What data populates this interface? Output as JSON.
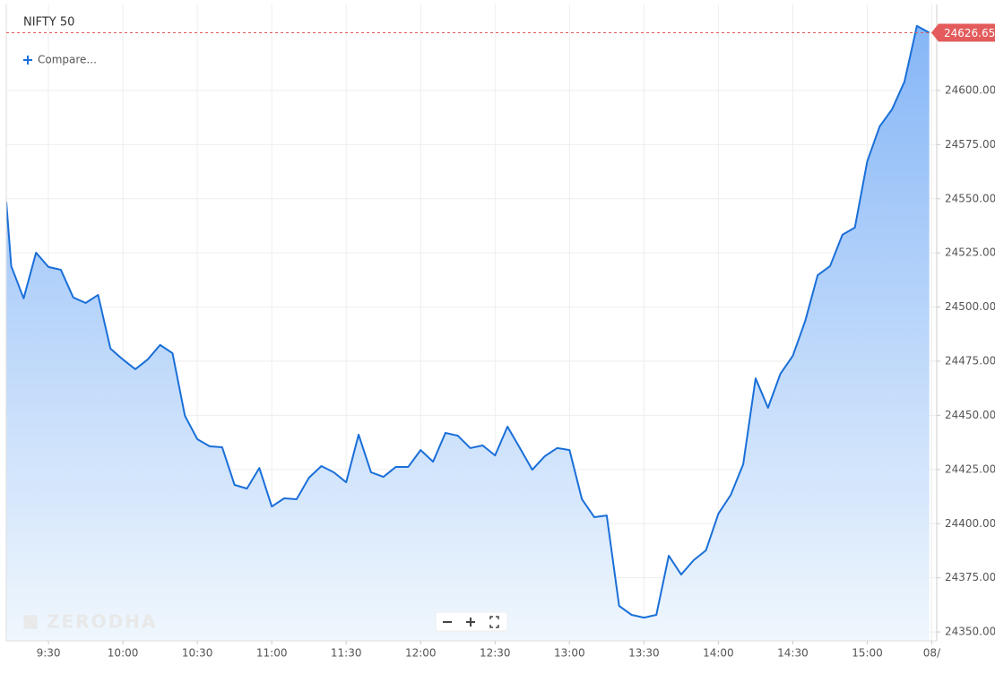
{
  "chart_data": {
    "type": "line",
    "title": "NIFTY 50",
    "compare_button": "Compare...",
    "watermark": "ZERODHA",
    "x": [
      553,
      555,
      560,
      565,
      570,
      575,
      580,
      585,
      590,
      595,
      600,
      605,
      610,
      615,
      620,
      625,
      630,
      635,
      640,
      645,
      650,
      655,
      660,
      665,
      670,
      675,
      680,
      685,
      690,
      695,
      700,
      705,
      710,
      715,
      720,
      725,
      730,
      735,
      740,
      745,
      750,
      755,
      760,
      765,
      770,
      775,
      780,
      785,
      790,
      795,
      800,
      805,
      810,
      815,
      820,
      825,
      830,
      835,
      840,
      845,
      850,
      855,
      860,
      865,
      870,
      875,
      880,
      885,
      890,
      895,
      900,
      905,
      910,
      915,
      920,
      925
    ],
    "series": [
      {
        "name": "NIFTY 50",
        "color": "#1a6fd8",
        "values": [
          24548.7,
          24518.9,
          24504.0,
          24525.1,
          24518.5,
          24517.2,
          24504.4,
          24501.9,
          24505.6,
          24480.8,
          24475.8,
          24471.3,
          24475.8,
          24482.5,
          24478.7,
          24449.8,
          24439.0,
          24435.7,
          24435.3,
          24417.9,
          24416.2,
          24425.7,
          24407.9,
          24411.7,
          24411.3,
          24421.2,
          24426.6,
          24423.7,
          24419.1,
          24441.1,
          24423.7,
          24421.6,
          24426.2,
          24426.2,
          24434.0,
          24428.6,
          24441.9,
          24440.6,
          24434.9,
          24436.1,
          24431.5,
          24444.8,
          24434.9,
          24424.9,
          24431.1,
          24434.9,
          24434.0,
          24411.3,
          24403.0,
          24403.8,
          24362.0,
          24357.9,
          24356.6,
          24357.9,
          24385.2,
          24376.5,
          24383.1,
          24387.7,
          24404.6,
          24413.3,
          24427.4,
          24467.1,
          24453.5,
          24469.2,
          24477.5,
          24493.6,
          24514.7,
          24518.9,
          24533.4,
          24536.7,
          24567.3,
          24583.4,
          24591.3,
          24604.1,
          24629.8,
          24626.65
        ]
      }
    ],
    "last_price": 24626.65,
    "xlim": [
      553,
      928
    ],
    "xticks": [
      {
        "value": 570,
        "label": "9:30"
      },
      {
        "value": 600,
        "label": "10:00"
      },
      {
        "value": 630,
        "label": "10:30"
      },
      {
        "value": 660,
        "label": "11:00"
      },
      {
        "value": 690,
        "label": "11:30"
      },
      {
        "value": 720,
        "label": "12:00"
      },
      {
        "value": 750,
        "label": "12:30"
      },
      {
        "value": 780,
        "label": "13:00"
      },
      {
        "value": 810,
        "label": "13:30"
      },
      {
        "value": 840,
        "label": "14:00"
      },
      {
        "value": 870,
        "label": "14:30"
      },
      {
        "value": 900,
        "label": "15:00"
      },
      {
        "value": 926,
        "label": "08/"
      }
    ],
    "ylim": [
      24345.9,
      24639.7
    ],
    "yticks": [
      {
        "value": 24350,
        "label": "24350.00"
      },
      {
        "value": 24375,
        "label": "24375.00"
      },
      {
        "value": 24400,
        "label": "24400.00"
      },
      {
        "value": 24425,
        "label": "24425.00"
      },
      {
        "value": 24450,
        "label": "24450.00"
      },
      {
        "value": 24475,
        "label": "24475.00"
      },
      {
        "value": 24500,
        "label": "24500.00"
      },
      {
        "value": 24525,
        "label": "24525.00"
      },
      {
        "value": 24550,
        "label": "24550.00"
      },
      {
        "value": 24575,
        "label": "24575.00"
      },
      {
        "value": 24600,
        "label": "24600.00"
      }
    ],
    "grid": true,
    "price_color": "#e35b5b"
  }
}
